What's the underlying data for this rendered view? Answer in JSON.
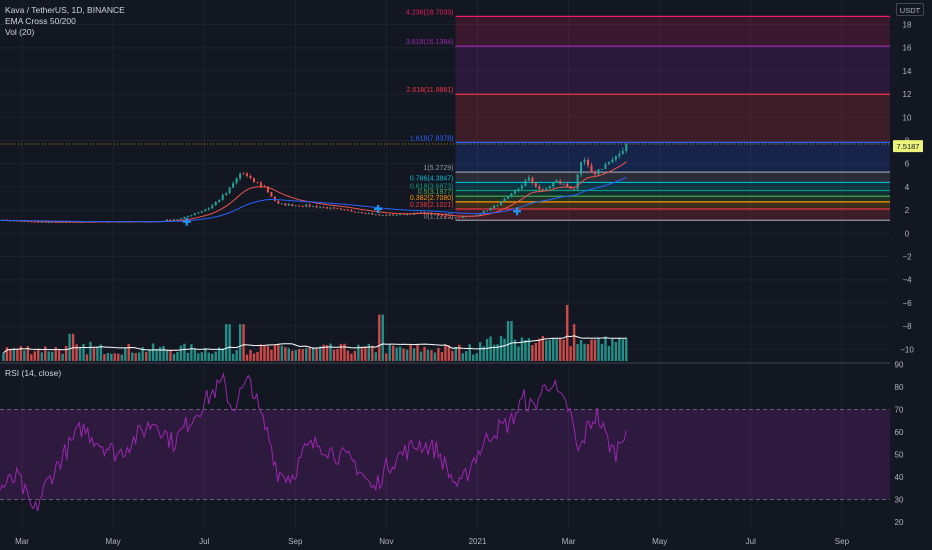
{
  "legend": {
    "symbol": "Kava / TetherUS, 1D, BINANCE",
    "ema": "EMA Cross 50/200",
    "vol": "Vol (20)"
  },
  "rsi_legend": "RSI (14, close)",
  "price_axis": {
    "unit": "USDT",
    "ticks": [
      18,
      16,
      14,
      12,
      10,
      8,
      6,
      4,
      2,
      0,
      -2,
      -4,
      -6,
      -8,
      -10
    ],
    "tick_labels": [
      "18",
      "16",
      "14",
      "12",
      "10",
      "8",
      "6",
      "4",
      "2",
      "0",
      "−2",
      "−4",
      "−6",
      "−8",
      "−10"
    ],
    "current_price": 7.5187,
    "current_price_label": "7.5187"
  },
  "rsi_axis": {
    "ticks": [
      90,
      80,
      70,
      60,
      50,
      40,
      30,
      20
    ],
    "tick_labels": [
      "90",
      "80",
      "70",
      "60",
      "50",
      "40",
      "30",
      "20"
    ],
    "upper_band": 70,
    "lower_band": 30
  },
  "time_axis": {
    "labels": [
      "Mar",
      "May",
      "Jul",
      "Sep",
      "Nov",
      "2021",
      "Mar",
      "May",
      "Jul",
      "Sep"
    ],
    "positions_month_index": [
      0,
      2,
      4,
      6,
      8,
      10,
      12,
      14,
      16,
      18
    ]
  },
  "fib_levels": [
    {
      "ratio": 0,
      "price": 1.1225,
      "label": "0(1.1225)",
      "color": "#9598a1"
    },
    {
      "ratio": 0.236,
      "price": 2.1021,
      "label": "0.236(2.1021)",
      "color": "#f23645"
    },
    {
      "ratio": 0.382,
      "price": 2.708,
      "label": "0.382(2.7080)",
      "color": "#ff9800"
    },
    {
      "ratio": 0.5,
      "price": 3.1977,
      "label": "0.5(3.1977)",
      "color": "#4caf50"
    },
    {
      "ratio": 0.618,
      "price": 3.6873,
      "label": "0.618(3.6873)",
      "color": "#089981"
    },
    {
      "ratio": 0.786,
      "price": 4.3847,
      "label": "0.786(4.3847)",
      "color": "#00bcd4"
    },
    {
      "ratio": 1,
      "price": 5.2729,
      "label": "1(5.2729)",
      "color": "#9598a1"
    },
    {
      "ratio": 1.618,
      "price": 7.8378,
      "label": "1.618(7.8378)",
      "color": "#2962ff"
    },
    {
      "ratio": 2.618,
      "price": 11.9881,
      "label": "2.618(11.9881)",
      "color": "#f23645"
    },
    {
      "ratio": 3.618,
      "price": 16.1384,
      "label": "3.618(16.1384)",
      "color": "#9c27b0"
    },
    {
      "ratio": 4.236,
      "price": 18.7033,
      "label": "4.236(18.7033)",
      "color": "#e91e63"
    }
  ],
  "colors": {
    "background": "#131722",
    "grid": "#1e222d",
    "text": "#d1d4dc",
    "axis_text": "#b2b5be",
    "up": "#26a69a",
    "down": "#ef5350",
    "ema_fast": "#ef5350",
    "ema_slow": "#2962ff",
    "vol_up": "#26a69a",
    "vol_down": "#ef5350",
    "vol_ma": "#ffffff",
    "rsi": "#9c27b0",
    "rsi_band_fill": "#9c27b033",
    "price_label_bg": "#ecf47a",
    "cross_marker": "#2196f3"
  },
  "chart_data": {
    "type": "candlestick",
    "months": 21,
    "price_months": 13,
    "price_anchors": [
      [
        0,
        1.15
      ],
      [
        0.8,
        0.95
      ],
      [
        1.5,
        0.95
      ],
      [
        2.5,
        1.0
      ],
      [
        3.4,
        1.0
      ],
      [
        4.0,
        1.3
      ],
      [
        4.6,
        2.2
      ],
      [
        5.0,
        3.6
      ],
      [
        5.3,
        5.3
      ],
      [
        5.5,
        4.6
      ],
      [
        5.8,
        4.0
      ],
      [
        6.1,
        2.5
      ],
      [
        6.6,
        2.4
      ],
      [
        7.0,
        2.3
      ],
      [
        7.5,
        2.0
      ],
      [
        8.0,
        1.8
      ],
      [
        8.3,
        1.55
      ],
      [
        8.8,
        1.6
      ],
      [
        9.3,
        1.8
      ],
      [
        9.9,
        1.3
      ],
      [
        10.4,
        1.5
      ],
      [
        10.8,
        2.2
      ],
      [
        11.2,
        3.2
      ],
      [
        11.6,
        4.7
      ],
      [
        11.9,
        3.6
      ],
      [
        12.2,
        4.5
      ],
      [
        12.6,
        3.8
      ],
      [
        12.8,
        6.5
      ],
      [
        13.0,
        5.0
      ],
      [
        13.3,
        6.0
      ],
      [
        13.5,
        6.3
      ],
      [
        13.75,
        7.7
      ]
    ],
    "rsi_anchors": [
      [
        0,
        35
      ],
      [
        0.4,
        40
      ],
      [
        0.6,
        30
      ],
      [
        0.75,
        24
      ],
      [
        1.0,
        36
      ],
      [
        1.4,
        50
      ],
      [
        1.8,
        62
      ],
      [
        2.2,
        55
      ],
      [
        2.6,
        50
      ],
      [
        3.0,
        58
      ],
      [
        3.4,
        65
      ],
      [
        3.8,
        55
      ],
      [
        4.2,
        66
      ],
      [
        4.6,
        76
      ],
      [
        4.9,
        82
      ],
      [
        5.1,
        70
      ],
      [
        5.3,
        78
      ],
      [
        5.5,
        83
      ],
      [
        5.7,
        68
      ],
      [
        5.9,
        58
      ],
      [
        6.1,
        42
      ],
      [
        6.4,
        40
      ],
      [
        6.7,
        52
      ],
      [
        7.0,
        55
      ],
      [
        7.4,
        50
      ],
      [
        7.8,
        46
      ],
      [
        8.0,
        40
      ],
      [
        8.2,
        34
      ],
      [
        8.5,
        45
      ],
      [
        8.8,
        50
      ],
      [
        9.2,
        55
      ],
      [
        9.6,
        52
      ],
      [
        9.9,
        40
      ],
      [
        10.1,
        35
      ],
      [
        10.4,
        48
      ],
      [
        10.8,
        60
      ],
      [
        11.2,
        64
      ],
      [
        11.5,
        75
      ],
      [
        11.7,
        70
      ],
      [
        11.9,
        78
      ],
      [
        12.1,
        83
      ],
      [
        12.3,
        74
      ],
      [
        12.5,
        70
      ],
      [
        12.7,
        50
      ],
      [
        12.9,
        62
      ],
      [
        13.1,
        68
      ],
      [
        13.3,
        58
      ],
      [
        13.5,
        50
      ],
      [
        13.75,
        63
      ]
    ],
    "volume_spikes": [
      [
        1.55,
        8.5
      ],
      [
        2.0,
        6.0
      ],
      [
        5.0,
        11.5
      ],
      [
        5.3,
        11.5
      ],
      [
        8.35,
        14.5
      ],
      [
        12.45,
        15.0
      ],
      [
        12.6,
        9.0
      ],
      [
        11.2,
        10.0
      ]
    ],
    "cross_markers": [
      [
        4.1,
        1.0
      ],
      [
        8.3,
        2.1
      ],
      [
        11.35,
        1.9
      ]
    ]
  }
}
